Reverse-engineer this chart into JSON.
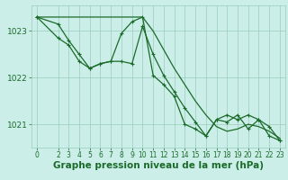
{
  "background_color": "#cceee8",
  "grid_color": "#99ccbb",
  "line_color": "#1a6b2a",
  "xlabel": "Graphe pression niveau de la mer (hPa)",
  "xlabel_fontsize": 7.5,
  "ylabel_ticks": [
    1021,
    1022,
    1023
  ],
  "xlim": [
    -0.5,
    23.5
  ],
  "ylim": [
    1020.5,
    1023.55
  ],
  "xticks": [
    0,
    2,
    3,
    4,
    5,
    6,
    7,
    8,
    9,
    10,
    11,
    12,
    13,
    14,
    15,
    16,
    17,
    18,
    19,
    20,
    21,
    22,
    23
  ],
  "series": [
    {
      "x": [
        0,
        1,
        2,
        3,
        4,
        5,
        6,
        7,
        8,
        9,
        10,
        11,
        12,
        13,
        14,
        15,
        16,
        17,
        18,
        19,
        20,
        21,
        22,
        23
      ],
      "y": [
        1023.3,
        1023.3,
        1023.3,
        1023.3,
        1023.3,
        1023.3,
        1023.3,
        1023.3,
        1023.3,
        1023.3,
        1023.3,
        1023.0,
        1022.6,
        1022.2,
        1021.85,
        1021.5,
        1021.2,
        1020.95,
        1020.85,
        1020.9,
        1021.0,
        1020.95,
        1020.85,
        1020.7
      ],
      "marker": false,
      "linewidth": 0.9
    },
    {
      "x": [
        0,
        2,
        3,
        4,
        5,
        6,
        7,
        8,
        9,
        10,
        11,
        12,
        13,
        14,
        15,
        16,
        17,
        18,
        19,
        20,
        21,
        22,
        23
      ],
      "y": [
        1023.3,
        1022.85,
        1022.7,
        1022.35,
        1022.2,
        1022.3,
        1022.35,
        1022.95,
        1023.2,
        1023.3,
        1022.05,
        1021.85,
        1021.6,
        1021.0,
        1020.9,
        1020.75,
        1021.1,
        1021.05,
        1021.2,
        1020.9,
        1021.1,
        1020.75,
        1020.65
      ],
      "marker": true,
      "linewidth": 0.9
    },
    {
      "x": [
        0,
        2,
        3,
        4,
        5,
        6,
        7,
        8,
        9,
        10,
        11,
        12,
        13,
        14,
        15,
        16,
        17,
        18,
        19,
        20,
        21,
        22,
        23
      ],
      "y": [
        1023.3,
        1023.15,
        1022.8,
        1022.5,
        1022.2,
        1022.3,
        1022.35,
        1022.35,
        1022.3,
        1023.1,
        1022.5,
        1022.05,
        1021.7,
        1021.35,
        1021.05,
        1020.75,
        1021.1,
        1021.2,
        1021.1,
        1021.2,
        1021.1,
        1020.95,
        1020.65
      ],
      "marker": true,
      "linewidth": 0.9
    }
  ]
}
